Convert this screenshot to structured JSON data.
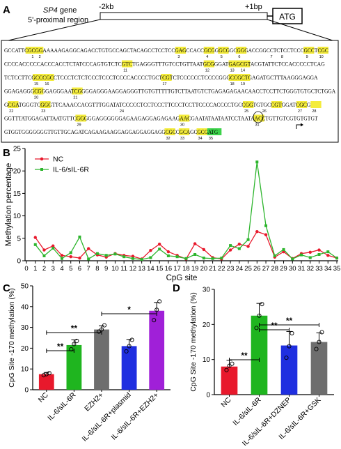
{
  "panels": {
    "A": "A",
    "B": "B",
    "C": "C",
    "D": "D"
  },
  "panelA": {
    "gene_label": "SP4",
    "gene_suffix": " gene",
    "region_label": "5'-proximal region",
    "left_coord": "-2kb",
    "right_coord": "+1bp",
    "atg_box": "ATG",
    "seq_lines": [
      "GCCATTCGCGGAAAAAGAGGCAGACCTGTGCCAGCTACAGCCTCCTCCGAGCCACCGCGGGCGGCGGGACCGGCCTCTCCTCCCGCCTCGC",
      "CCCCACCCCCACCCACCTCTATCCCAGTGTCTCGTCTGAGGGTTTGTCCTGTTAATGCGGGATGAGCGTACGTATTCTCCACCCCCTCAG",
      "TCTCCTTCGCCCGCCTCCCTCTCTCCCTCCCTCCCCACCCCTGCTCGTCTCCCCCCTCCCCGGGCCGCTGAGATGCTTTAAGGGAGGA",
      "GGAGAGGGCGGGAGGGAATCGGGGAGGGAAGGAGGGTTGTGTTTTTGTCTTAATGTCTGAGAGAGAACAACCTCCTTCTGGGTGTGCTCTGGA",
      "GCGATGGGTCGGGTTCAAACCACGTTTGGATATCCCCCTCCTCCCTTCCCTCCTTCCCCACCCCTGCCGGTGTGCCGTGGATCGCG",
      "GGTTTATGGAGATTAATGTTCGGGGGAGGGGGGAGAAGAGGAGAGAAGAACGAATATAATAATCCTAATAACCTGTTGTCGTGTGTGT",
      "GTGGTGGGGGGGTTGTTGCAGATCAGAAGAAGGAGGAGGAGGAGGCGCCGCAGCGCGATG"
    ],
    "cpg_numbers": [
      "1",
      "2",
      "3",
      "4",
      "5",
      "6",
      "7",
      "8",
      "9",
      "10",
      "11",
      "12",
      "13",
      "14",
      "15",
      "16",
      "17",
      "18",
      "19",
      "20",
      "21",
      "22",
      "23",
      "24",
      "25",
      "26",
      "27",
      "28",
      "29",
      "30",
      "31",
      "32",
      "33",
      "34",
      "35"
    ]
  },
  "panelB": {
    "chart_data": {
      "type": "line",
      "xlabel": "CpG site",
      "ylabel": "Methylation percentage",
      "x": [
        0,
        1,
        2,
        3,
        4,
        5,
        6,
        7,
        8,
        9,
        10,
        11,
        12,
        13,
        14,
        15,
        16,
        17,
        18,
        19,
        20,
        21,
        22,
        23,
        24,
        25,
        26,
        27,
        28,
        29,
        30,
        31,
        32,
        33,
        34,
        35
      ],
      "xlim": [
        0,
        35
      ],
      "ylim": [
        0,
        25
      ],
      "yticks": [
        0,
        5,
        10,
        15,
        20,
        25
      ],
      "legend_position": "top-left",
      "series": [
        {
          "name": "NC",
          "color": "#e8192c",
          "x": [
            1,
            2,
            3,
            4,
            5,
            6,
            7,
            8,
            9,
            10,
            11,
            12,
            13,
            14,
            15,
            16,
            17,
            18,
            19,
            20,
            21,
            22,
            23,
            24,
            25,
            26,
            27,
            28,
            29,
            30,
            31,
            32,
            33,
            34,
            35
          ],
          "values": [
            5.2,
            2.4,
            3.3,
            1.2,
            0.9,
            0.6,
            2.7,
            1.3,
            0.8,
            1.6,
            1.2,
            1.0,
            0.4,
            2.3,
            3.7,
            2.0,
            1.2,
            0.4,
            3.8,
            2.5,
            0.7,
            0.4,
            2.4,
            3.7,
            3.2,
            6.5,
            5.8,
            0.8,
            2.0,
            0.5,
            1.6,
            1.9,
            2.4,
            1.2,
            0.6
          ]
        },
        {
          "name": "IL-6/sIL-6R",
          "color": "#2db52d",
          "x": [
            1,
            2,
            3,
            4,
            5,
            6,
            7,
            8,
            9,
            10,
            11,
            12,
            13,
            14,
            15,
            16,
            17,
            18,
            19,
            20,
            21,
            22,
            23,
            24,
            25,
            26,
            27,
            28,
            29,
            30,
            31,
            32,
            33,
            34,
            35
          ],
          "values": [
            3.6,
            1.1,
            2.8,
            0.5,
            1.8,
            5.3,
            0.4,
            1.6,
            1.2,
            1.5,
            0.9,
            0.5,
            0.3,
            0.7,
            2.6,
            1.1,
            0.9,
            0.5,
            1.4,
            0.6,
            0.5,
            0.6,
            3.4,
            2.7,
            4.7,
            22.0,
            7.8,
            1.1,
            2.5,
            0.4,
            1.3,
            0.7,
            1.4,
            2.0,
            0.6
          ]
        }
      ]
    }
  },
  "panelC": {
    "chart_data": {
      "type": "bar",
      "ylabel": "CpG Site -170 methylation (%)",
      "ylim": [
        0,
        50
      ],
      "yticks": [
        0,
        10,
        20,
        30,
        40,
        50
      ],
      "categories": [
        "NC",
        "IL-6/sIL-6R",
        "EZH2+",
        "IL-6/sIL-6R+plasmid",
        "IL-6/sIL-6R+EZH2+"
      ],
      "values": [
        7.5,
        21.5,
        29.0,
        21.0,
        38.0
      ],
      "errors": [
        0.8,
        2.5,
        1.8,
        3.2,
        4.0
      ],
      "colors": [
        "#e8192c",
        "#1fb51f",
        "#6e6e6e",
        "#1f2fe0",
        "#a020d8"
      ],
      "points": [
        [
          7.0,
          7.5,
          8.0
        ],
        [
          19.5,
          22.0,
          23.5
        ],
        [
          28.0,
          29.0,
          31.0
        ],
        [
          18.5,
          21.0,
          24.0
        ],
        [
          33.5,
          38.5,
          42.5
        ]
      ],
      "significance": [
        {
          "from": 0,
          "to": 1,
          "label": "**"
        },
        {
          "from": 0,
          "to": 2,
          "label": "**"
        },
        {
          "from": 2,
          "to": 4,
          "label": "*"
        }
      ]
    }
  },
  "panelD": {
    "chart_data": {
      "type": "bar",
      "ylabel": "CpG Site -170 methylation (%)",
      "ylim": [
        0,
        30
      ],
      "yticks": [
        0,
        10,
        20,
        30
      ],
      "categories": [
        "NC",
        "IL-6/sIL-6R",
        "IL-6/sIL-6R+DZNEP",
        "IL-6/sIL-6R+GSK"
      ],
      "values": [
        8.0,
        22.5,
        14.0,
        15.0
      ],
      "errors": [
        1.8,
        3.5,
        4.0,
        2.6
      ],
      "colors": [
        "#e8192c",
        "#1fb51f",
        "#1f2fe0",
        "#6e6e6e"
      ],
      "points": [
        [
          7.0,
          8.2,
          8.8
        ],
        [
          19.0,
          22.5,
          25.8
        ],
        [
          10.5,
          13.8,
          17.5
        ],
        [
          13.0,
          15.0,
          17.8
        ]
      ],
      "significance": [
        {
          "from": 0,
          "to": 1,
          "label": "**"
        },
        {
          "from": 1,
          "to": 2,
          "label": "**"
        },
        {
          "from": 1,
          "to": 3,
          "label": "**"
        }
      ]
    }
  }
}
